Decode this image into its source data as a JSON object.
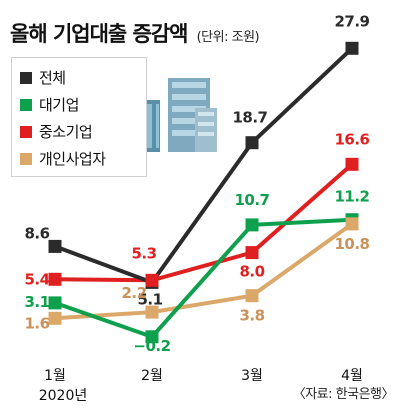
{
  "title": "올해 기업대출 증감액",
  "unit": "(단위: 조원)",
  "source": "〈자료: 한국은행〉",
  "chart_data": {
    "type": "line",
    "categories": [
      "1월",
      "2월",
      "3월",
      "4월"
    ],
    "category_sublabels": [
      "2020년",
      "",
      "",
      ""
    ],
    "ylim": [
      -1,
      29
    ],
    "grid": false,
    "legend_position": "top-left",
    "series": [
      {
        "name": "전체",
        "color": "#2b2b2b",
        "label_color": "#2b2b2b",
        "values": [
          8.6,
          5.1,
          18.7,
          27.9
        ],
        "labels": [
          "8.6",
          "5.1",
          "18.7",
          "27.9"
        ]
      },
      {
        "name": "대기업",
        "color": "#0fa04d",
        "label_color": "#0fa04d",
        "values": [
          3.1,
          -0.2,
          10.7,
          11.2
        ],
        "labels": [
          "3.1",
          "−0.2",
          "10.7",
          "11.2"
        ]
      },
      {
        "name": "중소기업",
        "color": "#e02020",
        "label_color": "#e02020",
        "values": [
          5.4,
          5.3,
          8.0,
          16.6
        ],
        "labels": [
          "5.4",
          "5.3",
          "8.0",
          "16.6"
        ]
      },
      {
        "name": "개인사업자",
        "color": "#dca86a",
        "label_color": "#c9925a",
        "values": [
          1.6,
          2.2,
          3.8,
          10.8
        ],
        "labels": [
          "1.6",
          "2.2",
          "3.8",
          "10.8"
        ]
      }
    ]
  }
}
